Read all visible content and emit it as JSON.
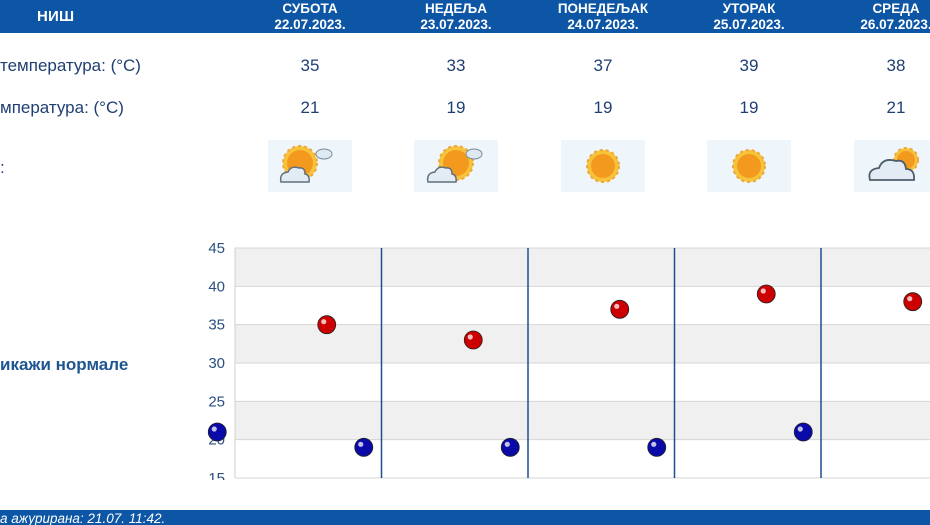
{
  "header": {
    "city": "НИШ",
    "days": [
      {
        "name": "СУБОТА",
        "date": "22.07.2023."
      },
      {
        "name": "НЕДЕЉА",
        "date": "23.07.2023."
      },
      {
        "name": "ПОНЕДЕЉАК",
        "date": "24.07.2023."
      },
      {
        "name": "УТОРАК",
        "date": "25.07.2023."
      },
      {
        "name": "СРЕДА",
        "date": "26.07.2023."
      }
    ]
  },
  "rows": {
    "max_label": "температура: (°C)",
    "min_label": "мпература: (°C)",
    "icon_label": ":"
  },
  "forecast": {
    "max": [
      "35",
      "33",
      "37",
      "39",
      "38"
    ],
    "min": [
      "21",
      "19",
      "19",
      "19",
      "21"
    ],
    "icons": [
      "sun-behind-cloud-icon",
      "sun-behind-cloud-icon",
      "sun-icon",
      "sun-icon",
      "cloud-with-sun-icon"
    ]
  },
  "normals_link": "икажи нормале",
  "footer": {
    "text": "а ажурирана:  21.07. 11:42."
  },
  "colors": {
    "header_bg": "#0d56a5",
    "max_point": "#cc0000",
    "min_point": "#0a0aa8",
    "grid_band": "#f0f0f0",
    "separator": "#1c4f8f"
  },
  "chart_data": {
    "type": "scatter",
    "categories": [
      "22.07.2023.",
      "23.07.2023.",
      "24.07.2023.",
      "25.07.2023.",
      "26.07.2023."
    ],
    "series": [
      {
        "values": [
          35,
          33,
          37,
          39,
          38
        ],
        "color": "#cc0000"
      },
      {
        "values": [
          21,
          19,
          19,
          19,
          21
        ],
        "color": "#0a0aa8"
      }
    ],
    "ylim": [
      15,
      45
    ],
    "yticks": [
      15,
      20,
      25,
      30,
      35,
      40,
      45
    ],
    "grid": true,
    "xlabel": "",
    "ylabel": ""
  }
}
